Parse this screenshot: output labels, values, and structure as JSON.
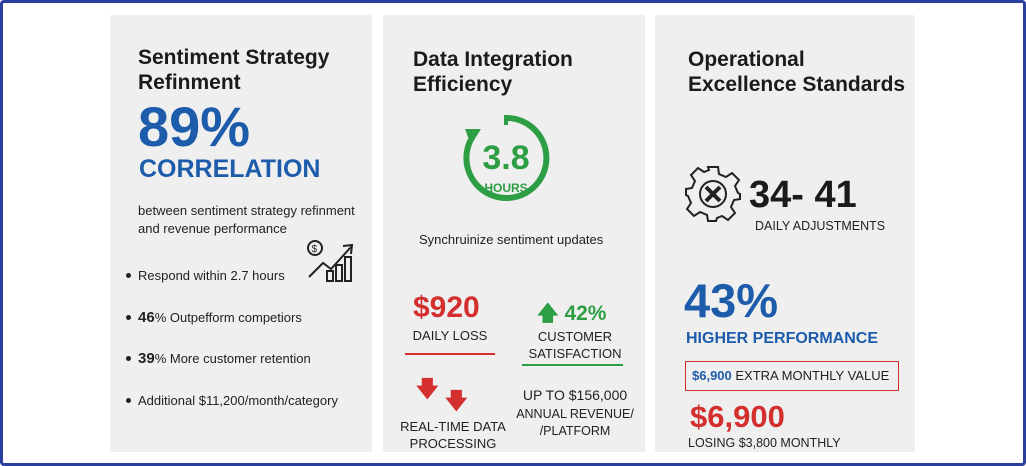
{
  "colors": {
    "frame": "#2b3f9e",
    "blue": "#1d5bab",
    "red": "#d32f2f",
    "green": "#2e9e44",
    "card": "#efefef"
  },
  "card1": {
    "title": "Sentiment Strategy Refinment",
    "big": "89%",
    "big_label": "CORRELATION",
    "desc": "between sentiment strategy refinment and revenue performance",
    "icon": "dollar-growth-chart-icon",
    "bullets": [
      {
        "strong": "",
        "text": "Respond within 2.7 hours"
      },
      {
        "strong": "46",
        "text": "% Outpefform competiors"
      },
      {
        "strong": "39",
        "text": "% More customer retention"
      },
      {
        "strong": "",
        "text": "Additional $11,200/month/category"
      }
    ]
  },
  "card2": {
    "title": "Data Integration Efficiency",
    "clock_value": "3.8",
    "clock_unit": "HOURS",
    "icon": "refresh-clock-icon",
    "subtitle": "Synchruinize sentiment updates",
    "loss_value": "$920",
    "loss_label": "DAILY LOSS",
    "satisfaction_value": "42%",
    "satisfaction_label": "CUSTOMER SATISFACTION",
    "processing_label": "REAL-TIME DATA PROCESSING",
    "revenue_value": "UP TO $156,000",
    "revenue_label": "ANNUAL REVENUE/ /PLATFORM"
  },
  "card3": {
    "title": "Operational Excellence Standards",
    "icon": "gear-icon",
    "range": "34- 41",
    "range_label": "DAILY ADJUSTMENTS",
    "big": "43%",
    "big_label": "HIGHER PERFORMANCE",
    "box_value": "$6,900",
    "box_label": "EXTRA MONTHLY VALUE",
    "loss_value": "$6,900",
    "loss_label": "LOSING $3,800 MONTHLY"
  }
}
